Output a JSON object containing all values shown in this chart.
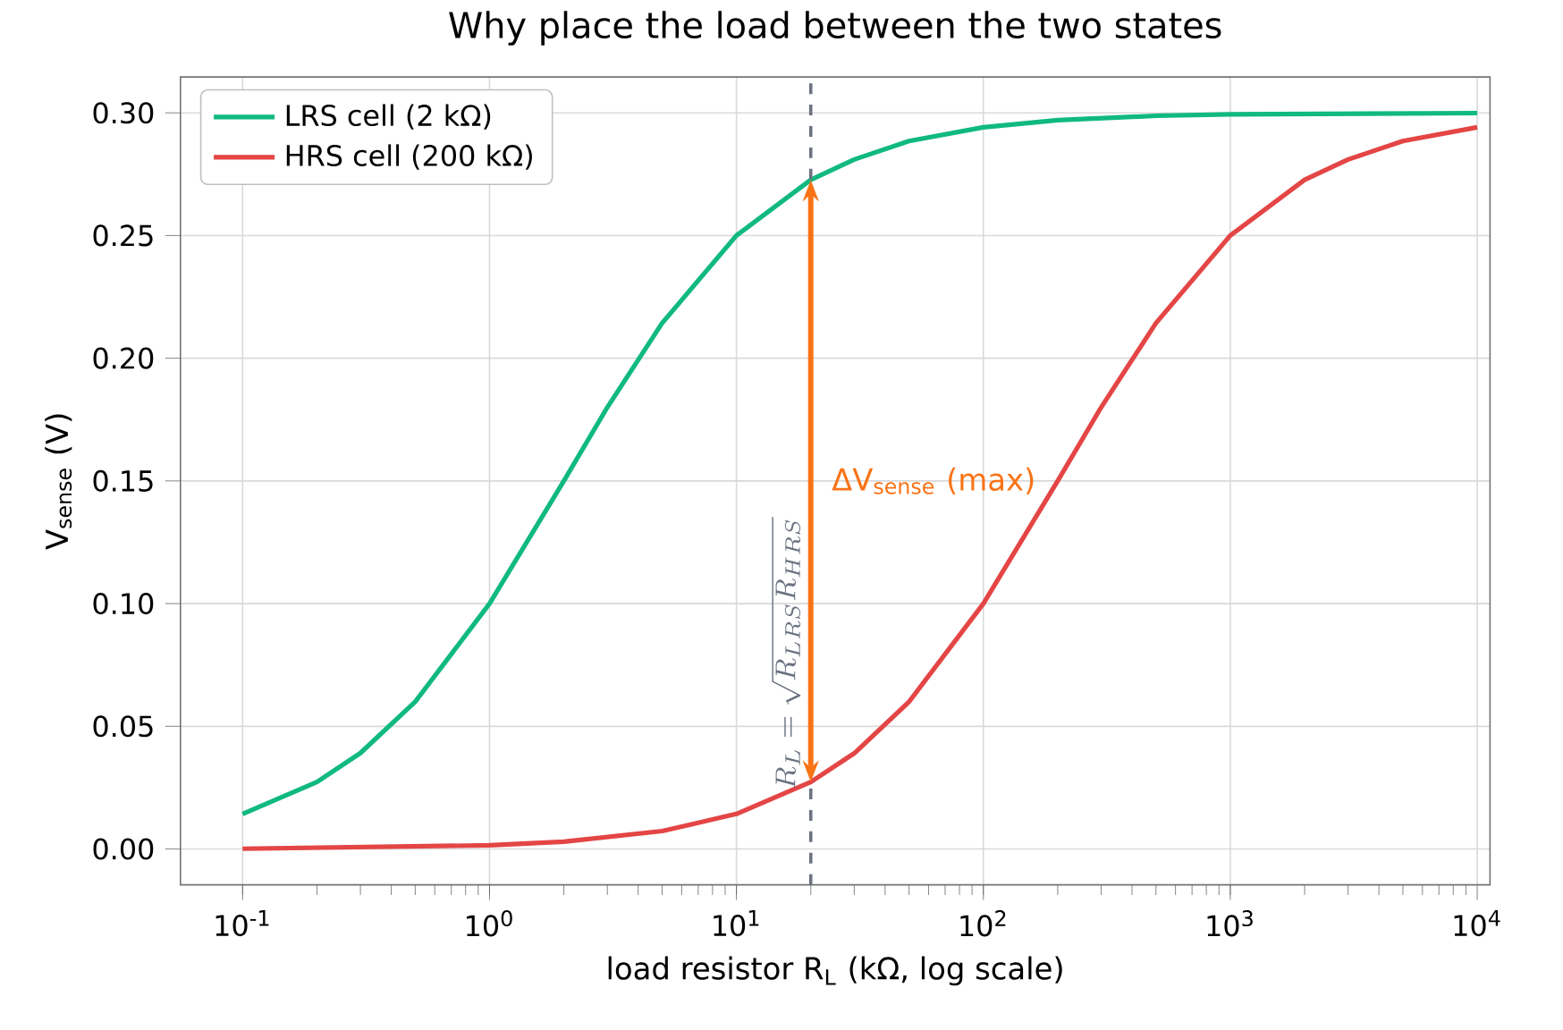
{
  "chart_data": {
    "type": "line",
    "title": "Why place the load between the two states",
    "xlabel": "load resistor R$_{L}$ (kΩ, log scale)",
    "ylabel": "V$_{sense}$ (V)",
    "log": "x",
    "grid": true,
    "legend": "top left",
    "line_style": "solid",
    "marker": "none",
    "xlim": [
      0.056,
      11270
    ],
    "ylim": [
      -0.0146,
      0.3146
    ],
    "xticks": [
      {
        "value": 0.1,
        "label": "10$^{-1}$"
      },
      {
        "value": 1,
        "label": "10$^{0}$"
      },
      {
        "value": 10,
        "label": "10$^{1}$"
      },
      {
        "value": 100,
        "label": "10$^{2}$"
      },
      {
        "value": 1000,
        "label": "10$^{3}$"
      },
      {
        "value": 10000,
        "label": "10$^{4}$"
      }
    ],
    "yticks": [
      {
        "value": 0,
        "label": "0.00"
      },
      {
        "value": 0.05,
        "label": "0.05"
      },
      {
        "value": 0.1,
        "label": "0.10"
      },
      {
        "value": 0.15,
        "label": "0.15"
      },
      {
        "value": 0.2,
        "label": "0.20"
      },
      {
        "value": 0.25,
        "label": "0.25"
      },
      {
        "value": 0.3,
        "label": "0.30"
      }
    ],
    "series": [
      {
        "name": "LRS cell (2 kΩ)",
        "color": "#10b981",
        "x": [
          0.1,
          0.2,
          0.3,
          0.5,
          1,
          2,
          3,
          5,
          10,
          20,
          30,
          50,
          100,
          200,
          500,
          1000,
          10000
        ],
        "values": [
          0.0143,
          0.0273,
          0.0391,
          0.06,
          0.1,
          0.15,
          0.18,
          0.2143,
          0.25,
          0.2727,
          0.281,
          0.2885,
          0.2941,
          0.297,
          0.2988,
          0.2994,
          0.2999
        ]
      },
      {
        "name": "HRS cell (200 kΩ)",
        "color": "#e44545",
        "x": [
          0.1,
          1,
          2,
          5,
          10,
          20,
          30,
          50,
          100,
          200,
          300,
          500,
          1000,
          2000,
          3000,
          5000,
          10000
        ],
        "values": [
          0.0001,
          0.0015,
          0.003,
          0.0073,
          0.0143,
          0.0273,
          0.039,
          0.06,
          0.1,
          0.15,
          0.18,
          0.2143,
          0.25,
          0.2727,
          0.281,
          0.2885,
          0.2941
        ]
      }
    ],
    "ref_lines": [
      {
        "axis": "x",
        "value": 20,
        "label": "R_L=\\sqrt{R_{LRS}R_{HRS}}",
        "color": "#6b7280",
        "line_style": "dashed"
      }
    ],
    "annotations": [
      {
        "text": "ΔV$_{sense}$ (max)",
        "x": 20,
        "y": 0.15
      }
    ]
  }
}
